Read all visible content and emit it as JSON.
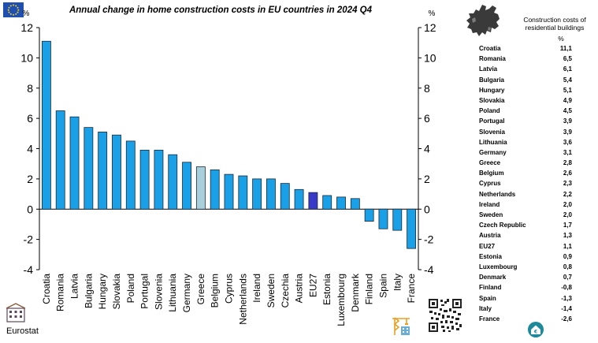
{
  "chart_data": {
    "type": "bar",
    "title": "Annual change in home construction costs in EU countries in 2024 Q4",
    "ylabel_left": "%",
    "ylabel_right": "%",
    "ylim": [
      -4,
      12
    ],
    "yticks": [
      -4,
      -2,
      0,
      2,
      4,
      6,
      8,
      10,
      12
    ],
    "grid": false,
    "categories": [
      "Croatia",
      "Romania",
      "Latvia",
      "Bulgaria",
      "Hungary",
      "Slovakia",
      "Poland",
      "Portugal",
      "Slovenia",
      "Lithuania",
      "Germany",
      "Greece",
      "Belgium",
      "Cyprus",
      "Netherlands",
      "Ireland",
      "Sweden",
      "Czechia",
      "Austria",
      "EU27",
      "Estonia",
      "Luxembourg",
      "Denmark",
      "Finland",
      "Spain",
      "Italy",
      "France"
    ],
    "values": [
      11.1,
      6.5,
      6.1,
      5.4,
      5.1,
      4.9,
      4.5,
      3.9,
      3.9,
      3.6,
      3.1,
      2.8,
      2.6,
      2.3,
      2.2,
      2.0,
      2.0,
      1.7,
      1.3,
      1.1,
      0.9,
      0.8,
      0.7,
      -0.8,
      -1.3,
      -1.4,
      -2.6
    ],
    "colors": {
      "default": "#1aa0e6",
      "highlight_Greece": "#a9cfdc",
      "highlight_EU27": "#3939c8",
      "stroke": "#1a2a3a"
    }
  },
  "table": {
    "header": "Construction costs of residential buildings",
    "unit": "%",
    "rows": [
      {
        "label": "Croatia",
        "value": "11,1"
      },
      {
        "label": "Romania",
        "value": "6,5"
      },
      {
        "label": "Latvia",
        "value": "6,1"
      },
      {
        "label": "Bulgaria",
        "value": "5,4"
      },
      {
        "label": "Hungary",
        "value": "5,1"
      },
      {
        "label": "Slovakia",
        "value": "4,9"
      },
      {
        "label": "Poland",
        "value": "4,5"
      },
      {
        "label": "Portugal",
        "value": "3,9"
      },
      {
        "label": "Slovenia",
        "value": "3,9"
      },
      {
        "label": "Lithuania",
        "value": "3,6"
      },
      {
        "label": "Germany",
        "value": "3,1"
      },
      {
        "label": "Greece",
        "value": "2,8"
      },
      {
        "label": "Belgium",
        "value": "2,6"
      },
      {
        "label": "Cyprus",
        "value": "2,3"
      },
      {
        "label": "Netherlands",
        "value": "2,2"
      },
      {
        "label": "Ireland",
        "value": "2,0"
      },
      {
        "label": "Sweden",
        "value": "2,0"
      },
      {
        "label": "Czech Republic",
        "value": "1,7"
      },
      {
        "label": "Austria",
        "value": "1,3"
      },
      {
        "label": "EU27",
        "value": "1,1"
      },
      {
        "label": "Estonia",
        "value": "0,9"
      },
      {
        "label": "Luxembourg",
        "value": "0,8"
      },
      {
        "label": "Denmark",
        "value": "0,7"
      },
      {
        "label": "Finland",
        "value": "-0,8"
      },
      {
        "label": "Spain",
        "value": "-1,3"
      },
      {
        "label": "Italy",
        "value": "-1,4"
      },
      {
        "label": "France",
        "value": "-2,6"
      }
    ]
  },
  "footer": {
    "source": "Eurostat"
  },
  "icons": {
    "flag": "eu-flag-icon",
    "map": "europe-map-icon",
    "qr": "qr-code-icon",
    "building": "building-icon",
    "crane": "crane-icon",
    "euro_house": "euro-house-icon"
  }
}
